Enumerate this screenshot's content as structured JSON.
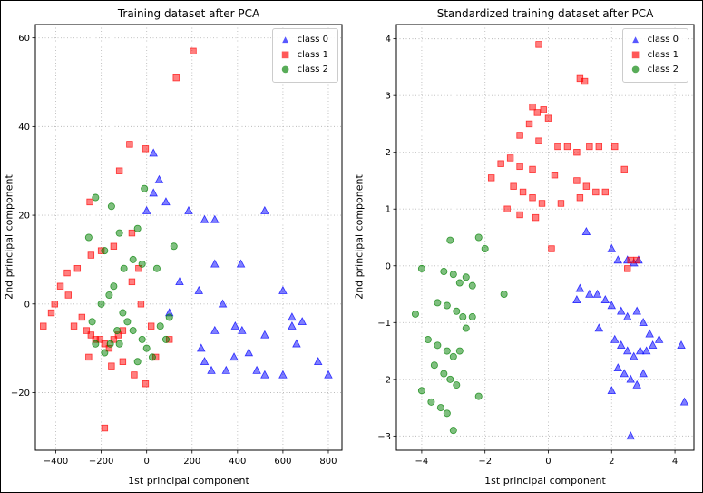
{
  "ui": {
    "marker_glyphs": {
      "triangle": "▲",
      "square": "■",
      "circle": "●"
    },
    "grid_color": "#bbbbbb",
    "spine_color": "#000000",
    "background": "#ffffff"
  },
  "chart_data": [
    {
      "type": "scatter",
      "title": "Training dataset after PCA",
      "xlabel": "1st principal component",
      "ylabel": "2nd principal component",
      "xlim": [
        -490,
        860
      ],
      "ylim": [
        -33,
        63
      ],
      "xticks": [
        -400,
        -200,
        0,
        200,
        400,
        600,
        800
      ],
      "yticks": [
        -20,
        0,
        20,
        40,
        60
      ],
      "grid": true,
      "legend_position": "upper right",
      "series": [
        {
          "name": "class 0",
          "marker": "triangle",
          "color": "#0000ff",
          "points": [
            [
              30,
              34
            ],
            [
              55,
              28
            ],
            [
              30,
              25
            ],
            [
              85,
              23
            ],
            [
              0,
              21
            ],
            [
              185,
              21
            ],
            [
              255,
              19
            ],
            [
              300,
              19
            ],
            [
              520,
              21
            ],
            [
              415,
              9
            ],
            [
              300,
              9
            ],
            [
              230,
              3
            ],
            [
              335,
              0
            ],
            [
              600,
              3
            ],
            [
              640,
              -3
            ],
            [
              685,
              -4
            ],
            [
              520,
              -7
            ],
            [
              420,
              -6
            ],
            [
              390,
              -5
            ],
            [
              300,
              -6
            ],
            [
              255,
              -13
            ],
            [
              285,
              -15
            ],
            [
              350,
              -15
            ],
            [
              385,
              -12
            ],
            [
              450,
              -11
            ],
            [
              485,
              -15
            ],
            [
              520,
              -16
            ],
            [
              600,
              -16
            ],
            [
              660,
              -9
            ],
            [
              755,
              -13
            ],
            [
              800,
              -16
            ],
            [
              240,
              -10
            ],
            [
              145,
              5
            ],
            [
              100,
              -2
            ],
            [
              640,
              -5
            ]
          ]
        },
        {
          "name": "class 1",
          "marker": "square",
          "color": "#ff0000",
          "points": [
            [
              205,
              57
            ],
            [
              130,
              51
            ],
            [
              -75,
              36
            ],
            [
              -5,
              35
            ],
            [
              -120,
              30
            ],
            [
              -250,
              23
            ],
            [
              -65,
              16
            ],
            [
              -145,
              13
            ],
            [
              -200,
              12
            ],
            [
              -245,
              11
            ],
            [
              -305,
              8
            ],
            [
              -350,
              7
            ],
            [
              -380,
              4
            ],
            [
              -405,
              0
            ],
            [
              -420,
              -2
            ],
            [
              -455,
              -5
            ],
            [
              -285,
              -3
            ],
            [
              -265,
              -6
            ],
            [
              -245,
              -7
            ],
            [
              -225,
              -8
            ],
            [
              -205,
              -8
            ],
            [
              -185,
              -9
            ],
            [
              -165,
              -10
            ],
            [
              -145,
              -8
            ],
            [
              -125,
              -7
            ],
            [
              -105,
              -6
            ],
            [
              -255,
              -12
            ],
            [
              -155,
              -14
            ],
            [
              -105,
              -13
            ],
            [
              -55,
              -16
            ],
            [
              -5,
              -18
            ],
            [
              40,
              -12
            ],
            [
              -65,
              5
            ],
            [
              -25,
              0
            ],
            [
              20,
              -5
            ],
            [
              -185,
              -28
            ],
            [
              100,
              -8
            ],
            [
              -320,
              -5
            ],
            [
              -345,
              2
            ],
            [
              -35,
              8
            ]
          ]
        },
        {
          "name": "class 2",
          "marker": "circle",
          "color": "#008000",
          "points": [
            [
              -225,
              24
            ],
            [
              -10,
              26
            ],
            [
              -155,
              22
            ],
            [
              -120,
              16
            ],
            [
              -255,
              15
            ],
            [
              -185,
              12
            ],
            [
              -60,
              10
            ],
            [
              -20,
              9
            ],
            [
              -100,
              8
            ],
            [
              45,
              8
            ],
            [
              120,
              13
            ],
            [
              -40,
              17
            ],
            [
              -145,
              4
            ],
            [
              -165,
              2
            ],
            [
              -200,
              0
            ],
            [
              -105,
              -2
            ],
            [
              -85,
              -4
            ],
            [
              -60,
              -6
            ],
            [
              -20,
              -8
            ],
            [
              0,
              -10
            ],
            [
              25,
              -12
            ],
            [
              -120,
              -9
            ],
            [
              -160,
              -9
            ],
            [
              -185,
              -11
            ],
            [
              -225,
              -9
            ],
            [
              60,
              -5
            ],
            [
              85,
              -8
            ],
            [
              100,
              -3
            ],
            [
              -240,
              -4
            ],
            [
              -40,
              -13
            ],
            [
              -130,
              -6
            ]
          ]
        }
      ]
    },
    {
      "type": "scatter",
      "title": "Standardized training dataset after PCA",
      "xlabel": "1st principal component",
      "ylabel": "2nd principal component",
      "xlim": [
        -4.8,
        4.6
      ],
      "ylim": [
        -3.25,
        4.25
      ],
      "xticks": [
        -4,
        -2,
        0,
        2,
        4
      ],
      "yticks": [
        -3,
        -2,
        -1,
        0,
        1,
        2,
        3,
        4
      ],
      "grid": true,
      "legend_position": "upper right",
      "series": [
        {
          "name": "class 0",
          "marker": "triangle",
          "color": "#0000ff",
          "points": [
            [
              1.2,
              0.6
            ],
            [
              2.0,
              0.3
            ],
            [
              2.2,
              0.1
            ],
            [
              2.5,
              0.1
            ],
            [
              2.7,
              0.05
            ],
            [
              2.85,
              0.1
            ],
            [
              1.0,
              -0.4
            ],
            [
              1.3,
              -0.5
            ],
            [
              1.55,
              -0.5
            ],
            [
              1.8,
              -0.6
            ],
            [
              2.0,
              -0.7
            ],
            [
              2.3,
              -0.8
            ],
            [
              2.5,
              -0.9
            ],
            [
              2.8,
              -0.8
            ],
            [
              3.0,
              -1.0
            ],
            [
              3.2,
              -1.2
            ],
            [
              2.1,
              -1.3
            ],
            [
              2.3,
              -1.4
            ],
            [
              2.5,
              -1.5
            ],
            [
              2.7,
              -1.6
            ],
            [
              2.9,
              -1.5
            ],
            [
              3.1,
              -1.5
            ],
            [
              3.3,
              -1.4
            ],
            [
              3.5,
              -1.3
            ],
            [
              2.2,
              -1.8
            ],
            [
              2.4,
              -1.9
            ],
            [
              2.6,
              -2.0
            ],
            [
              2.8,
              -2.1
            ],
            [
              3.0,
              -1.9
            ],
            [
              2.0,
              -2.2
            ],
            [
              4.2,
              -1.4
            ],
            [
              4.3,
              -2.4
            ],
            [
              2.6,
              -3.0
            ],
            [
              1.6,
              -1.1
            ],
            [
              0.9,
              -0.6
            ]
          ]
        },
        {
          "name": "class 1",
          "marker": "square",
          "color": "#ff0000",
          "points": [
            [
              -0.3,
              3.9
            ],
            [
              1.0,
              3.3
            ],
            [
              1.15,
              3.25
            ],
            [
              -0.5,
              2.8
            ],
            [
              -0.35,
              2.7
            ],
            [
              -0.15,
              2.75
            ],
            [
              0.0,
              2.6
            ],
            [
              -0.6,
              2.5
            ],
            [
              -0.9,
              2.3
            ],
            [
              -0.3,
              2.2
            ],
            [
              0.3,
              2.1
            ],
            [
              0.6,
              2.1
            ],
            [
              0.9,
              2.0
            ],
            [
              1.3,
              2.1
            ],
            [
              1.6,
              2.1
            ],
            [
              2.1,
              2.1
            ],
            [
              -1.2,
              1.9
            ],
            [
              -1.5,
              1.8
            ],
            [
              -0.9,
              1.75
            ],
            [
              -0.5,
              1.7
            ],
            [
              0.2,
              1.6
            ],
            [
              0.9,
              1.5
            ],
            [
              1.2,
              1.4
            ],
            [
              1.5,
              1.3
            ],
            [
              1.8,
              1.3
            ],
            [
              2.4,
              1.7
            ],
            [
              -1.1,
              1.4
            ],
            [
              -0.8,
              1.3
            ],
            [
              -0.5,
              1.2
            ],
            [
              -0.2,
              1.1
            ],
            [
              0.4,
              1.1
            ],
            [
              1.0,
              1.2
            ],
            [
              -1.3,
              1.0
            ],
            [
              -0.9,
              0.9
            ],
            [
              -0.4,
              0.85
            ],
            [
              2.6,
              0.1
            ],
            [
              2.8,
              0.1
            ],
            [
              2.5,
              -0.05
            ],
            [
              -1.8,
              1.55
            ],
            [
              0.1,
              0.3
            ]
          ]
        },
        {
          "name": "class 2",
          "marker": "circle",
          "color": "#008000",
          "points": [
            [
              -3.1,
              0.45
            ],
            [
              -2.2,
              0.5
            ],
            [
              -2.0,
              0.3
            ],
            [
              -4.0,
              -0.05
            ],
            [
              -3.3,
              -0.1
            ],
            [
              -3.0,
              -0.15
            ],
            [
              -2.8,
              -0.3
            ],
            [
              -2.6,
              -0.2
            ],
            [
              -2.4,
              -0.35
            ],
            [
              -3.5,
              -0.65
            ],
            [
              -3.2,
              -0.7
            ],
            [
              -2.9,
              -0.8
            ],
            [
              -2.7,
              -0.9
            ],
            [
              -4.2,
              -0.85
            ],
            [
              -3.8,
              -1.3
            ],
            [
              -3.5,
              -1.4
            ],
            [
              -3.2,
              -1.5
            ],
            [
              -3.0,
              -1.6
            ],
            [
              -2.8,
              -1.5
            ],
            [
              -3.6,
              -1.75
            ],
            [
              -3.3,
              -1.9
            ],
            [
              -3.1,
              -2.0
            ],
            [
              -2.9,
              -2.1
            ],
            [
              -4.0,
              -2.2
            ],
            [
              -3.7,
              -2.4
            ],
            [
              -3.4,
              -2.5
            ],
            [
              -3.2,
              -2.6
            ],
            [
              -3.0,
              -2.9
            ],
            [
              -2.6,
              -1.1
            ],
            [
              -2.4,
              -0.9
            ],
            [
              -1.4,
              -0.5
            ],
            [
              -2.2,
              -2.3
            ]
          ]
        }
      ]
    }
  ]
}
